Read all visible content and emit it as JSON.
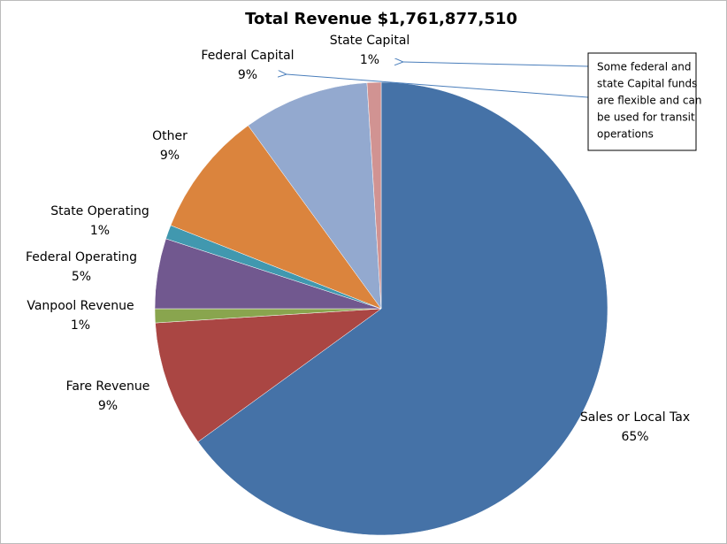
{
  "chart_data": {
    "type": "pie",
    "title": "Total Revenue $1,761,877,510",
    "categories": [
      "Sales or Local Tax",
      "Fare Revenue",
      "Vanpool Revenue",
      "Federal Operating",
      "State Operating",
      "Other",
      "Federal Capital",
      "State Capital"
    ],
    "values": [
      65,
      9,
      1,
      5,
      1,
      9,
      9,
      1
    ],
    "value_labels": [
      "65%",
      "9%",
      "1%",
      "5%",
      "1%",
      "9%",
      "9%",
      "1%"
    ],
    "colors": [
      "#4572a7",
      "#aa4643",
      "#89a54e",
      "#71588f",
      "#4198af",
      "#db843d",
      "#93a9cf",
      "#d19392"
    ],
    "annotation": [
      "Some federal and",
      "state Capital funds",
      "are flexible and can",
      "be used for transit",
      "operations"
    ]
  }
}
